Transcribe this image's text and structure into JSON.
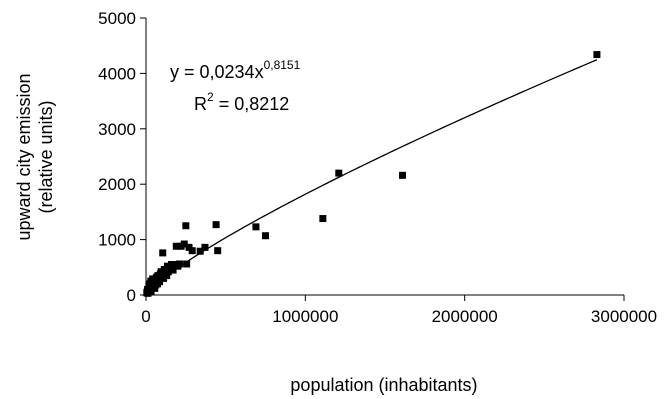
{
  "chart_data": {
    "type": "scatter",
    "xlabel": "population (inhabitants)",
    "ylabel_line1": "upward city emission",
    "ylabel_line2": "(relative units)",
    "xlim": [
      0,
      3000000
    ],
    "ylim": [
      0,
      5000
    ],
    "x_ticks": [
      0,
      1000000,
      2000000,
      3000000
    ],
    "x_tick_labels": [
      "0",
      "1000000",
      "2000000",
      "3000000"
    ],
    "y_ticks": [
      0,
      1000,
      2000,
      3000,
      4000,
      5000
    ],
    "y_tick_labels": [
      "0",
      "1000",
      "2000",
      "3000",
      "4000",
      "5000"
    ],
    "grid": false,
    "legend": "none",
    "marker": "square",
    "marker_color": "#000000",
    "points": [
      {
        "x": 5000,
        "y": 40
      },
      {
        "x": 8000,
        "y": 60
      },
      {
        "x": 10000,
        "y": 100
      },
      {
        "x": 12000,
        "y": 30
      },
      {
        "x": 15000,
        "y": 80
      },
      {
        "x": 18000,
        "y": 150
      },
      {
        "x": 20000,
        "y": 120
      },
      {
        "x": 22000,
        "y": 200
      },
      {
        "x": 25000,
        "y": 90
      },
      {
        "x": 28000,
        "y": 160
      },
      {
        "x": 30000,
        "y": 250
      },
      {
        "x": 32000,
        "y": 70
      },
      {
        "x": 35000,
        "y": 180
      },
      {
        "x": 38000,
        "y": 130
      },
      {
        "x": 40000,
        "y": 220
      },
      {
        "x": 42000,
        "y": 290
      },
      {
        "x": 45000,
        "y": 150
      },
      {
        "x": 48000,
        "y": 200
      },
      {
        "x": 50000,
        "y": 280
      },
      {
        "x": 55000,
        "y": 120
      },
      {
        "x": 58000,
        "y": 240
      },
      {
        "x": 60000,
        "y": 180
      },
      {
        "x": 65000,
        "y": 320
      },
      {
        "x": 70000,
        "y": 260
      },
      {
        "x": 72000,
        "y": 200
      },
      {
        "x": 75000,
        "y": 350
      },
      {
        "x": 80000,
        "y": 300
      },
      {
        "x": 85000,
        "y": 240
      },
      {
        "x": 90000,
        "y": 380
      },
      {
        "x": 95000,
        "y": 420
      },
      {
        "x": 100000,
        "y": 330
      },
      {
        "x": 105000,
        "y": 760
      },
      {
        "x": 110000,
        "y": 300
      },
      {
        "x": 115000,
        "y": 460
      },
      {
        "x": 120000,
        "y": 400
      },
      {
        "x": 130000,
        "y": 350
      },
      {
        "x": 135000,
        "y": 520
      },
      {
        "x": 140000,
        "y": 420
      },
      {
        "x": 150000,
        "y": 480
      },
      {
        "x": 160000,
        "y": 550
      },
      {
        "x": 170000,
        "y": 450
      },
      {
        "x": 180000,
        "y": 550
      },
      {
        "x": 190000,
        "y": 880
      },
      {
        "x": 200000,
        "y": 520
      },
      {
        "x": 210000,
        "y": 560
      },
      {
        "x": 220000,
        "y": 880
      },
      {
        "x": 240000,
        "y": 920
      },
      {
        "x": 250000,
        "y": 1250
      },
      {
        "x": 255000,
        "y": 560
      },
      {
        "x": 270000,
        "y": 860
      },
      {
        "x": 290000,
        "y": 800
      },
      {
        "x": 340000,
        "y": 790
      },
      {
        "x": 370000,
        "y": 860
      },
      {
        "x": 440000,
        "y": 1270
      },
      {
        "x": 450000,
        "y": 800
      },
      {
        "x": 690000,
        "y": 1230
      },
      {
        "x": 750000,
        "y": 1070
      },
      {
        "x": 1110000,
        "y": 1380
      },
      {
        "x": 1210000,
        "y": 2200
      },
      {
        "x": 1610000,
        "y": 2160
      },
      {
        "x": 2830000,
        "y": 4340
      }
    ],
    "trendline": {
      "type": "power",
      "coef": 0.0234,
      "exp": 0.8151,
      "x_range": [
        1000,
        2830000
      ]
    },
    "annotation": {
      "eq_main": "y = 0,0234x",
      "eq_exp": "0,8151",
      "r2_main": "R",
      "r2_sup": "2",
      "r2_value": " = 0,8212"
    }
  }
}
